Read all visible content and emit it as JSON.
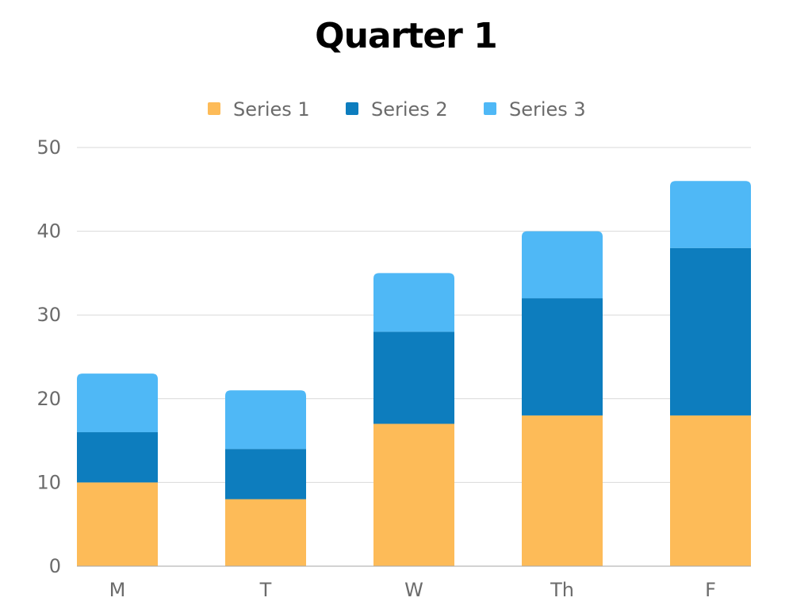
{
  "chart_data": {
    "type": "bar",
    "stacked": true,
    "title": "Quarter 1",
    "xlabel": "",
    "ylabel": "",
    "categories": [
      "M",
      "T",
      "W",
      "Th",
      "F"
    ],
    "series": [
      {
        "name": "Series 1",
        "color": "#FDBB58",
        "values": [
          10,
          8,
          17,
          18,
          18
        ]
      },
      {
        "name": "Series 2",
        "color": "#0D7DBE",
        "values": [
          6,
          6,
          11,
          14,
          20
        ]
      },
      {
        "name": "Series 3",
        "color": "#4FB8F6",
        "values": [
          7,
          7,
          7,
          8,
          8
        ]
      }
    ],
    "ylim": [
      0,
      50
    ],
    "yticks": [
      0,
      10,
      20,
      30,
      40,
      50
    ],
    "grid": true,
    "legend_position": "top-center"
  }
}
